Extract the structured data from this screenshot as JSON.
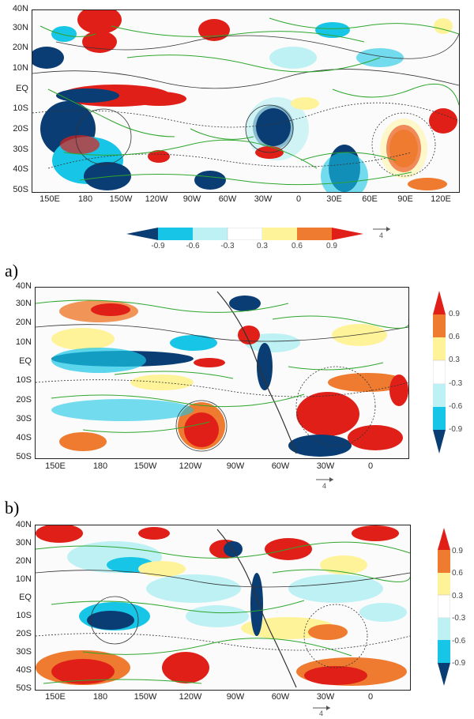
{
  "panels": [
    {
      "label": "",
      "lat_labels": [
        "40N",
        "30N",
        "20N",
        "10N",
        "EQ",
        "10S",
        "20S",
        "30S",
        "40S",
        "50S"
      ],
      "lon_labels": [
        "150E",
        "180",
        "150W",
        "120W",
        "90W",
        "60W",
        "30W",
        "0",
        "30E",
        "60E",
        "90E",
        "120E"
      ],
      "colorbar_labels": [
        "-0.9",
        "-0.6",
        "-0.3",
        "0.3",
        "0.6",
        "0.9"
      ],
      "vector_scale": "4"
    },
    {
      "label": "a)",
      "lat_labels": [
        "40N",
        "30N",
        "20N",
        "10N",
        "EQ",
        "10S",
        "20S",
        "30S",
        "40S",
        "50S"
      ],
      "lon_labels": [
        "150E",
        "180",
        "150W",
        "120W",
        "90W",
        "60W",
        "30W",
        "0"
      ],
      "colorbar_labels": [
        "0.9",
        "0.6",
        "0.3",
        "-0.3",
        "-0.6",
        "-0.9"
      ],
      "vector_scale": "4"
    },
    {
      "label": "b)",
      "lat_labels": [
        "40N",
        "30N",
        "20N",
        "10N",
        "EQ",
        "10S",
        "20S",
        "30S",
        "40S",
        "50S"
      ],
      "lon_labels": [
        "150E",
        "180",
        "150W",
        "120W",
        "90W",
        "60W",
        "30W",
        "0"
      ],
      "colorbar_labels": [
        "0.9",
        "0.6",
        "0.3",
        "-0.3",
        "-0.6",
        "-0.9"
      ],
      "vector_scale": "4"
    }
  ],
  "colors": {
    "neg3": "#0a3d73",
    "neg2": "#17c6e6",
    "neg1": "#bdf1f4",
    "zero": "#ffffff",
    "pos1": "#fff39a",
    "pos2": "#ef7b30",
    "pos3": "#e02018",
    "vector": "#2ea62e",
    "contour": "#333333"
  }
}
